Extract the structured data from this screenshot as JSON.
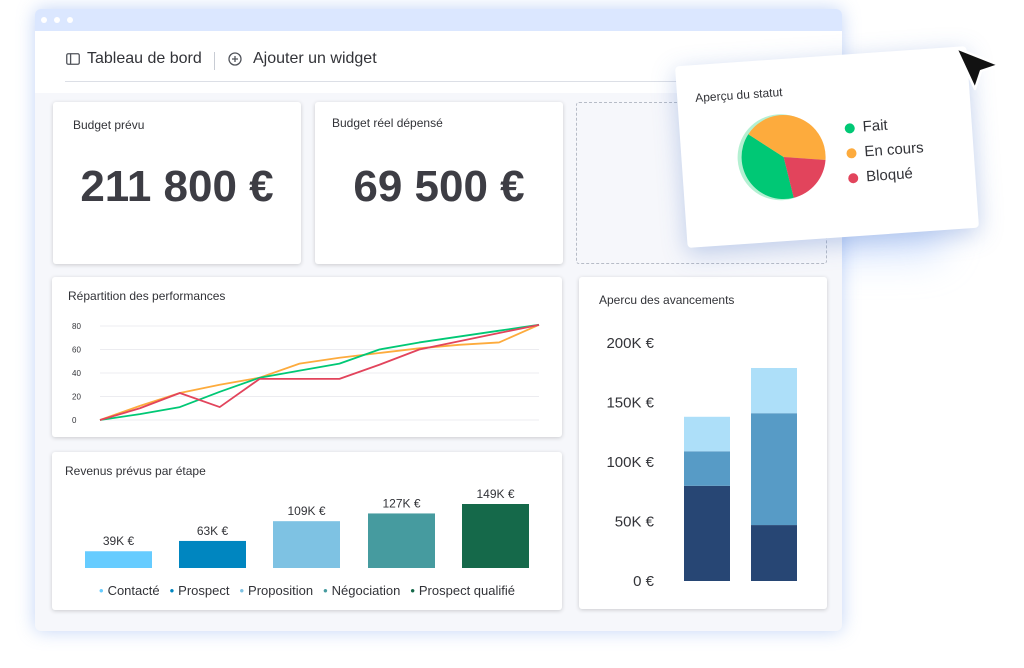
{
  "toolbar": {
    "dashboard_label": "Tableau de bord",
    "add_widget_label": "Ajouter un widget"
  },
  "widgets": {
    "budget_planned": {
      "title": "Budget prévu",
      "value": "211 800 €"
    },
    "budget_spent": {
      "title": "Budget réel dépensé",
      "value": "69 500 €"
    },
    "performance": {
      "title": "Répartition des performances"
    },
    "revenue": {
      "title": "Revenus prévus par étape"
    },
    "progress": {
      "title": "Apercu des avancements"
    },
    "status": {
      "title": "Aperçu du statut",
      "legend": [
        {
          "label": "Fait",
          "color": "#00c875"
        },
        {
          "label": "En cours",
          "color": "#fdab3d"
        },
        {
          "label": "Bloqué",
          "color": "#e2445c"
        }
      ]
    }
  },
  "chart_data": [
    {
      "type": "line",
      "title": "Répartition des performances",
      "ylim": [
        0,
        80
      ],
      "y_ticks": [
        "0",
        "20",
        "40",
        "60",
        "80"
      ],
      "grid": true,
      "x": [
        0,
        1,
        2,
        3,
        4,
        5,
        6,
        7,
        8,
        9,
        10,
        11
      ],
      "series": [
        {
          "color": "#fdab3d",
          "values": [
            0,
            12,
            23,
            30,
            36,
            48,
            53,
            57,
            61,
            64,
            66,
            81
          ]
        },
        {
          "color": "#00c875",
          "values": [
            0,
            5,
            11,
            24,
            36,
            42,
            48,
            60,
            66,
            71,
            76,
            81
          ]
        },
        {
          "color": "#e2445c",
          "values": [
            0,
            10,
            23,
            11,
            35,
            35,
            35,
            47,
            60,
            67,
            74,
            81
          ]
        }
      ]
    },
    {
      "type": "bar",
      "title": "Revenus prévus par étape",
      "categories": [
        "Contacté",
        "Prospect",
        "Proposition",
        "Négociation",
        "Prospect qualifié"
      ],
      "values": [
        39,
        63,
        109,
        127,
        149
      ],
      "data_labels": [
        "39K €",
        "63K €",
        "109K €",
        "127K €",
        "149K €"
      ],
      "colors": [
        "#66ccff",
        "#0086c0",
        "#7ec2e3",
        "#469b9f",
        "#15694a"
      ]
    },
    {
      "type": "bar",
      "stacked": true,
      "title": "Apercu des avancements",
      "ylim": [
        0,
        200
      ],
      "y_ticks": [
        "0 €",
        "50K €",
        "100K €",
        "150K €",
        "200K €"
      ],
      "series": [
        {
          "color": "#274674",
          "values": [
            80,
            47
          ]
        },
        {
          "color": "#579bc6",
          "values": [
            29,
            94
          ]
        },
        {
          "color": "#addff9",
          "values": [
            29,
            38
          ]
        }
      ]
    },
    {
      "type": "pie",
      "title": "Aperçu du statut",
      "categories": [
        "Fait",
        "En cours",
        "Bloqué"
      ],
      "values": [
        38,
        42,
        20
      ],
      "colors": [
        "#00c875",
        "#fdab3d",
        "#e2445c"
      ]
    }
  ]
}
